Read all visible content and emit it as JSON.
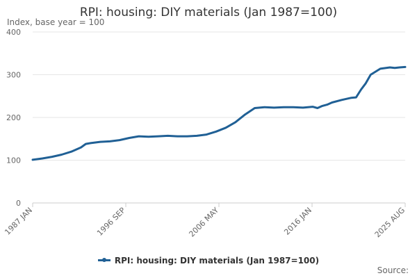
{
  "chart_data": {
    "type": "line",
    "title": "RPI: housing: DIY materials (Jan 1987=100)",
    "subtitle": "Index, base year = 100",
    "ylim": [
      0,
      400
    ],
    "y_ticks": [
      0,
      100,
      200,
      300,
      400
    ],
    "x_ticks": [
      "1987 JAN",
      "1996 SEP",
      "2006 MAY",
      "2016 JAN",
      "2025 AUG"
    ],
    "x_range": [
      1987.0,
      2025.58
    ],
    "legend": "bottom-center",
    "series": [
      {
        "name": "RPI: housing: DIY materials (Jan 1987=100)",
        "color": "#206095",
        "x": [
          1987.0,
          1988.0,
          1989.0,
          1990.0,
          1991.0,
          1992.0,
          1992.5,
          1993.0,
          1994.0,
          1995.0,
          1996.0,
          1997.0,
          1998.0,
          1999.0,
          2000.0,
          2001.0,
          2002.0,
          2003.0,
          2004.0,
          2005.0,
          2006.0,
          2007.0,
          2008.0,
          2009.0,
          2010.0,
          2011.0,
          2012.0,
          2013.0,
          2014.0,
          2015.0,
          2016.0,
          2016.5,
          2017.0,
          2017.5,
          2018.0,
          2019.0,
          2020.0,
          2020.5,
          2021.0,
          2021.5,
          2022.0,
          2023.0,
          2024.0,
          2024.5,
          2025.0,
          2025.58
        ],
        "y": [
          101,
          104,
          108,
          113,
          120,
          130,
          138,
          140,
          143,
          144,
          147,
          152,
          156,
          155,
          156,
          157,
          156,
          156,
          157,
          160,
          167,
          176,
          189,
          207,
          222,
          224,
          223,
          224,
          224,
          223,
          225,
          222,
          227,
          230,
          235,
          241,
          246,
          247,
          265,
          280,
          300,
          314,
          317,
          316,
          317,
          318
        ]
      }
    ],
    "legend_label": "RPI: housing: DIY materials (Jan 1987=100)",
    "source_label": "Source:"
  }
}
